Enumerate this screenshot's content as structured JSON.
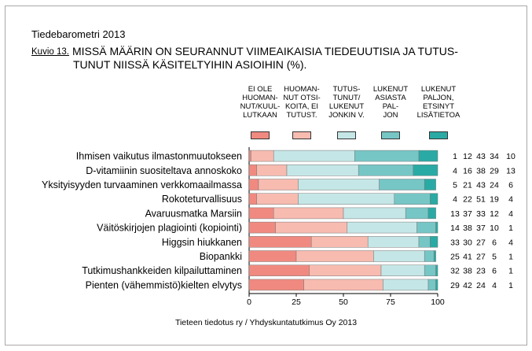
{
  "header": {
    "barometer": "Tiedebarometri 2013",
    "kuvio": "Kuvio 13.",
    "title_line1": "MISSÄ MÄÄRIN ON SEURANNUT VIIMEAIKAISIA TIEDEUUTISIA JA TUTUS-",
    "title_line2": "TUNUT NIISSÄ KÄSITELTYIHIN ASIOIHIN (%)."
  },
  "legend": [
    {
      "lines": [
        "EI OLE",
        "HUOMAN-",
        "NUT/KUUL-",
        "LUTKAAN"
      ],
      "color": "#f08a80"
    },
    {
      "lines": [
        "HUOMAN-",
        "NUT OTSI-",
        "KOITA, EI",
        "TUTUST."
      ],
      "color": "#f8bbb0"
    },
    {
      "lines": [
        "TUTUS-",
        "TUNUT/",
        "LUKENUT",
        "JONKIN V."
      ],
      "color": "#c5e6e6"
    },
    {
      "lines": [
        "LUKENUT",
        "ASIASTA",
        "PAL-",
        "JON"
      ],
      "color": "#76c6c6"
    },
    {
      "lines": [
        "LUKENUT",
        "PALJON,",
        "ETSINYT",
        "LISÄTIETOA"
      ],
      "color": "#2aaaa4"
    }
  ],
  "chart_data": {
    "type": "bar",
    "orientation": "horizontal",
    "stacked": true,
    "categories": [
      "Ihmisen vaikutus ilmastonmuutokseen",
      "D-vitamiinin suositeltava annoskoko",
      "Yksityisyyden turvaaminen verkkomaailmassa",
      "Rokoteturvallisuus",
      "Avaruusmatka Marsiin",
      "Väitöskirjojen plagiointi (kopiointi)",
      "Higgsin hiukkanen",
      "Biopankki",
      "Tutkimushankkeiden kilpailuttaminen",
      "Pienten (vähemmistö)kielten elvytys"
    ],
    "series": [
      {
        "name": "EI OLE HUOMANNUT/KUULLUTKAAN",
        "values": [
          1,
          4,
          5,
          4,
          13,
          14,
          33,
          25,
          32,
          29
        ]
      },
      {
        "name": "HUOMANNUT OTSIKOITA, EI TUTUST.",
        "values": [
          12,
          16,
          21,
          22,
          37,
          38,
          30,
          41,
          38,
          42
        ]
      },
      {
        "name": "TUTUSTUNUT/LUKENUT JONKIN V.",
        "values": [
          43,
          38,
          43,
          51,
          33,
          37,
          27,
          27,
          23,
          24
        ]
      },
      {
        "name": "LUKENUT ASIASTA PALJON",
        "values": [
          34,
          29,
          24,
          19,
          12,
          10,
          6,
          5,
          6,
          4
        ]
      },
      {
        "name": "LUKENUT PALJON, ETSINYT LISÄTIETOA",
        "values": [
          10,
          13,
          6,
          4,
          4,
          1,
          4,
          1,
          1,
          1
        ]
      }
    ],
    "xlim": [
      0,
      100
    ],
    "xticks": [
      "0",
      "25",
      "50",
      "75",
      "100"
    ]
  },
  "source": "Tieteen tiedotus ry / Yhdyskuntatutkimus Oy 2013"
}
